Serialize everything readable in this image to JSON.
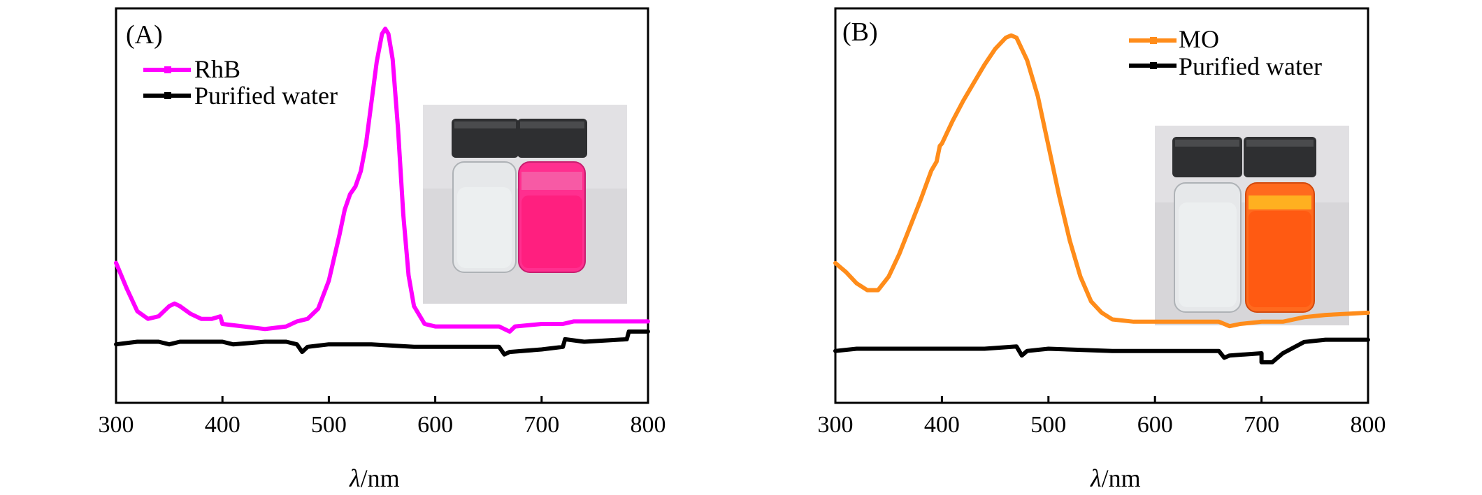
{
  "chart_data": [
    {
      "type": "line",
      "panel_label": "(A)",
      "xlabel_symbol": "λ",
      "xlabel_unit": "/nm",
      "xlim": [
        300,
        800
      ],
      "xticks": [
        300,
        400,
        500,
        600,
        700,
        800
      ],
      "ylabel": "",
      "ytick_labels": false,
      "legend_position": "top-left",
      "inset_photo": "two vials: purified water (clear) and RhB solution (pink)",
      "series": [
        {
          "name": "RhB",
          "color": "#ff00ff",
          "marker": "square",
          "points": [
            [
              300,
              0.55
            ],
            [
              310,
              0.45
            ],
            [
              320,
              0.36
            ],
            [
              330,
              0.33
            ],
            [
              340,
              0.34
            ],
            [
              350,
              0.38
            ],
            [
              355,
              0.39
            ],
            [
              360,
              0.38
            ],
            [
              370,
              0.35
            ],
            [
              380,
              0.33
            ],
            [
              390,
              0.33
            ],
            [
              398,
              0.34
            ],
            [
              400,
              0.31
            ],
            [
              420,
              0.3
            ],
            [
              440,
              0.29
            ],
            [
              460,
              0.3
            ],
            [
              470,
              0.32
            ],
            [
              480,
              0.33
            ],
            [
              490,
              0.37
            ],
            [
              500,
              0.48
            ],
            [
              510,
              0.66
            ],
            [
              515,
              0.76
            ],
            [
              520,
              0.82
            ],
            [
              525,
              0.85
            ],
            [
              530,
              0.91
            ],
            [
              535,
              1.02
            ],
            [
              540,
              1.18
            ],
            [
              545,
              1.34
            ],
            [
              550,
              1.45
            ],
            [
              553,
              1.47
            ],
            [
              556,
              1.45
            ],
            [
              560,
              1.35
            ],
            [
              565,
              1.08
            ],
            [
              570,
              0.74
            ],
            [
              575,
              0.5
            ],
            [
              580,
              0.38
            ],
            [
              590,
              0.31
            ],
            [
              600,
              0.3
            ],
            [
              620,
              0.3
            ],
            [
              640,
              0.3
            ],
            [
              660,
              0.3
            ],
            [
              665,
              0.29
            ],
            [
              670,
              0.28
            ],
            [
              675,
              0.3
            ],
            [
              700,
              0.31
            ],
            [
              720,
              0.31
            ],
            [
              730,
              0.32
            ],
            [
              760,
              0.32
            ],
            [
              800,
              0.32
            ]
          ]
        },
        {
          "name": "Purified water",
          "color": "#000000",
          "marker": "square",
          "points": [
            [
              300,
              0.23
            ],
            [
              320,
              0.24
            ],
            [
              340,
              0.24
            ],
            [
              350,
              0.23
            ],
            [
              360,
              0.24
            ],
            [
              400,
              0.24
            ],
            [
              410,
              0.23
            ],
            [
              440,
              0.24
            ],
            [
              460,
              0.24
            ],
            [
              470,
              0.23
            ],
            [
              475,
              0.2
            ],
            [
              480,
              0.22
            ],
            [
              500,
              0.23
            ],
            [
              540,
              0.23
            ],
            [
              580,
              0.22
            ],
            [
              620,
              0.22
            ],
            [
              660,
              0.22
            ],
            [
              665,
              0.19
            ],
            [
              670,
              0.2
            ],
            [
              700,
              0.21
            ],
            [
              720,
              0.22
            ],
            [
              722,
              0.25
            ],
            [
              740,
              0.24
            ],
            [
              780,
              0.25
            ],
            [
              782,
              0.28
            ],
            [
              800,
              0.28
            ]
          ]
        }
      ]
    },
    {
      "type": "line",
      "panel_label": "(B)",
      "xlabel_symbol": "λ",
      "xlabel_unit": "/nm",
      "xlim": [
        300,
        800
      ],
      "xticks": [
        300,
        400,
        500,
        600,
        700,
        800
      ],
      "ylabel": "",
      "ytick_labels": false,
      "legend_position": "top-right",
      "inset_photo": "two vials: purified water (clear) and MO solution (orange)",
      "series": [
        {
          "name": "MO",
          "color": "#ff8c1a",
          "marker": "square",
          "points": [
            [
              300,
              0.62
            ],
            [
              310,
              0.58
            ],
            [
              320,
              0.53
            ],
            [
              330,
              0.5
            ],
            [
              340,
              0.5
            ],
            [
              350,
              0.56
            ],
            [
              360,
              0.66
            ],
            [
              370,
              0.78
            ],
            [
              380,
              0.9
            ],
            [
              390,
              1.03
            ],
            [
              395,
              1.07
            ],
            [
              398,
              1.14
            ],
            [
              400,
              1.15
            ],
            [
              410,
              1.25
            ],
            [
              420,
              1.34
            ],
            [
              430,
              1.42
            ],
            [
              440,
              1.5
            ],
            [
              450,
              1.57
            ],
            [
              460,
              1.62
            ],
            [
              465,
              1.63
            ],
            [
              470,
              1.62
            ],
            [
              480,
              1.52
            ],
            [
              490,
              1.36
            ],
            [
              500,
              1.14
            ],
            [
              510,
              0.92
            ],
            [
              520,
              0.72
            ],
            [
              530,
              0.56
            ],
            [
              540,
              0.45
            ],
            [
              550,
              0.4
            ],
            [
              560,
              0.37
            ],
            [
              580,
              0.36
            ],
            [
              600,
              0.36
            ],
            [
              620,
              0.36
            ],
            [
              640,
              0.36
            ],
            [
              660,
              0.36
            ],
            [
              665,
              0.35
            ],
            [
              670,
              0.34
            ],
            [
              680,
              0.35
            ],
            [
              700,
              0.36
            ],
            [
              720,
              0.36
            ],
            [
              740,
              0.38
            ],
            [
              760,
              0.39
            ],
            [
              800,
              0.4
            ]
          ]
        },
        {
          "name": "Purified water",
          "color": "#000000",
          "marker": "square",
          "points": [
            [
              300,
              0.23
            ],
            [
              320,
              0.24
            ],
            [
              360,
              0.24
            ],
            [
              400,
              0.24
            ],
            [
              440,
              0.24
            ],
            [
              470,
              0.25
            ],
            [
              475,
              0.21
            ],
            [
              480,
              0.23
            ],
            [
              500,
              0.24
            ],
            [
              560,
              0.23
            ],
            [
              620,
              0.23
            ],
            [
              660,
              0.23
            ],
            [
              665,
              0.2
            ],
            [
              670,
              0.21
            ],
            [
              700,
              0.22
            ],
            [
              700,
              0.18
            ],
            [
              710,
              0.18
            ],
            [
              720,
              0.22
            ],
            [
              740,
              0.27
            ],
            [
              760,
              0.28
            ],
            [
              800,
              0.28
            ]
          ]
        }
      ]
    }
  ]
}
